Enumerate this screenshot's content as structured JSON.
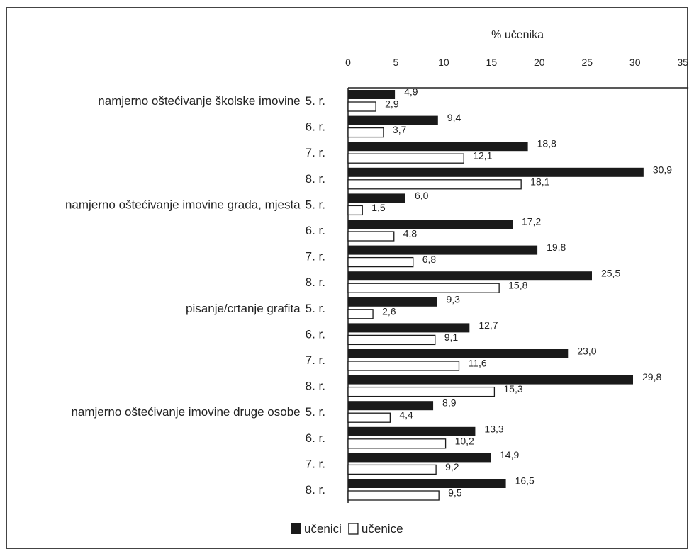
{
  "chart_data": {
    "type": "bar",
    "orientation": "horizontal",
    "xlabel": "% učenika",
    "xlim": [
      0,
      35
    ],
    "xticks": [
      0,
      5,
      10,
      15,
      20,
      25,
      30,
      35
    ],
    "xaxis_position": "top",
    "grid": false,
    "legend_placement": "bottom-center",
    "groups": [
      {
        "label": "namjerno oštećivanje školske imovine",
        "rows": [
          {
            "label": "5. r.",
            "values": [
              4.9,
              2.9
            ],
            "value_labels": [
              "4,9",
              "2,9"
            ]
          },
          {
            "label": "6. r.",
            "values": [
              9.4,
              3.7
            ],
            "value_labels": [
              "9,4",
              "3,7"
            ]
          },
          {
            "label": "7. r.",
            "values": [
              18.8,
              12.1
            ],
            "value_labels": [
              "18,8",
              "12,1"
            ]
          },
          {
            "label": "8. r.",
            "values": [
              30.9,
              18.1
            ],
            "value_labels": [
              "30,9",
              "18,1"
            ]
          }
        ]
      },
      {
        "label": "namjerno oštećivanje imovine grada, mjesta",
        "rows": [
          {
            "label": "5. r.",
            "values": [
              6.0,
              1.5
            ],
            "value_labels": [
              "6,0",
              "1,5"
            ]
          },
          {
            "label": "6. r.",
            "values": [
              17.2,
              4.8
            ],
            "value_labels": [
              "17,2",
              "4,8"
            ]
          },
          {
            "label": "7. r.",
            "values": [
              19.8,
              6.8
            ],
            "value_labels": [
              "19,8",
              "6,8"
            ]
          },
          {
            "label": "8. r.",
            "values": [
              25.5,
              15.8
            ],
            "value_labels": [
              "25,5",
              "15,8"
            ]
          }
        ]
      },
      {
        "label": "pisanje/crtanje grafita",
        "rows": [
          {
            "label": "5. r.",
            "values": [
              9.3,
              2.6
            ],
            "value_labels": [
              "9,3",
              "2,6"
            ]
          },
          {
            "label": "6. r.",
            "values": [
              12.7,
              9.1
            ],
            "value_labels": [
              "12,7",
              "9,1"
            ]
          },
          {
            "label": "7. r.",
            "values": [
              23.0,
              11.6
            ],
            "value_labels": [
              "23,0",
              "11,6"
            ]
          },
          {
            "label": "8. r.",
            "values": [
              29.8,
              15.3
            ],
            "value_labels": [
              "29,8",
              "15,3"
            ]
          }
        ]
      },
      {
        "label": "namjerno oštećivanje imovine druge osobe",
        "rows": [
          {
            "label": "5. r.",
            "values": [
              8.9,
              4.4
            ],
            "value_labels": [
              "8,9",
              "4,4"
            ]
          },
          {
            "label": "6. r.",
            "values": [
              13.3,
              10.2
            ],
            "value_labels": [
              "13,3",
              "10,2"
            ]
          },
          {
            "label": "7. r.",
            "values": [
              14.9,
              9.2
            ],
            "value_labels": [
              "14,9",
              "9,2"
            ]
          },
          {
            "label": "8. r.",
            "values": [
              16.5,
              9.5
            ],
            "value_labels": [
              "16,5",
              "9,5"
            ]
          }
        ]
      }
    ],
    "series": [
      {
        "name": "učenici",
        "color": "#1a1a1a"
      },
      {
        "name": "učenice",
        "color": "#ffffff"
      }
    ]
  }
}
